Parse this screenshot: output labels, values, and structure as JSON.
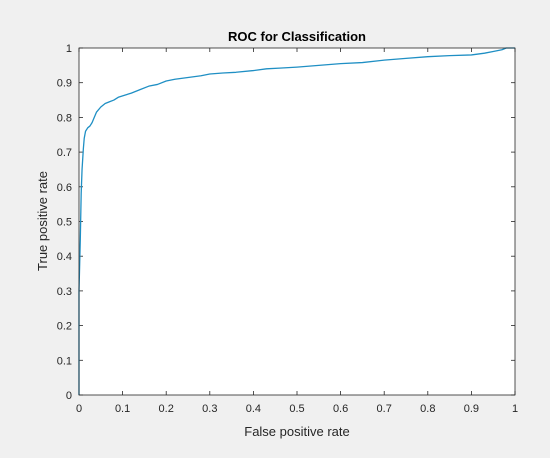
{
  "chart_data": {
    "type": "line",
    "title": "ROC for Classification",
    "xlabel": "False positive rate",
    "ylabel": "True positive rate",
    "xlim": [
      0,
      1
    ],
    "ylim": [
      0,
      1
    ],
    "grid": false,
    "x_ticks": [
      "0",
      "0.1",
      "0.2",
      "0.3",
      "0.4",
      "0.5",
      "0.6",
      "0.7",
      "0.8",
      "0.9",
      "1"
    ],
    "y_ticks": [
      "0",
      "0.1",
      "0.2",
      "0.3",
      "0.4",
      "0.5",
      "0.6",
      "0.7",
      "0.8",
      "0.9",
      "1"
    ],
    "series": [
      {
        "color": "#1f8fc4",
        "x": [
          0,
          0,
          0.003,
          0.005,
          0.007,
          0.01,
          0.012,
          0.015,
          0.02,
          0.025,
          0.03,
          0.035,
          0.04,
          0.05,
          0.06,
          0.07,
          0.08,
          0.09,
          0.1,
          0.12,
          0.14,
          0.16,
          0.18,
          0.2,
          0.22,
          0.25,
          0.28,
          0.3,
          0.33,
          0.36,
          0.4,
          0.43,
          0.46,
          0.5,
          0.55,
          0.6,
          0.65,
          0.7,
          0.75,
          0.8,
          0.85,
          0.9,
          0.93,
          0.95,
          0.97,
          0.98,
          1
        ],
        "y": [
          0,
          0.3,
          0.45,
          0.58,
          0.65,
          0.71,
          0.74,
          0.76,
          0.77,
          0.775,
          0.785,
          0.8,
          0.815,
          0.83,
          0.84,
          0.845,
          0.85,
          0.858,
          0.862,
          0.87,
          0.88,
          0.89,
          0.895,
          0.905,
          0.91,
          0.915,
          0.92,
          0.925,
          0.928,
          0.93,
          0.935,
          0.94,
          0.942,
          0.945,
          0.95,
          0.955,
          0.958,
          0.965,
          0.97,
          0.975,
          0.978,
          0.98,
          0.985,
          0.99,
          0.995,
          1,
          1
        ]
      }
    ]
  },
  "colors": {
    "figure_background": "#f0f0f0",
    "axes_background": "#ffffff",
    "axis_color": "#262626",
    "line_color": "#1f8fc4"
  }
}
